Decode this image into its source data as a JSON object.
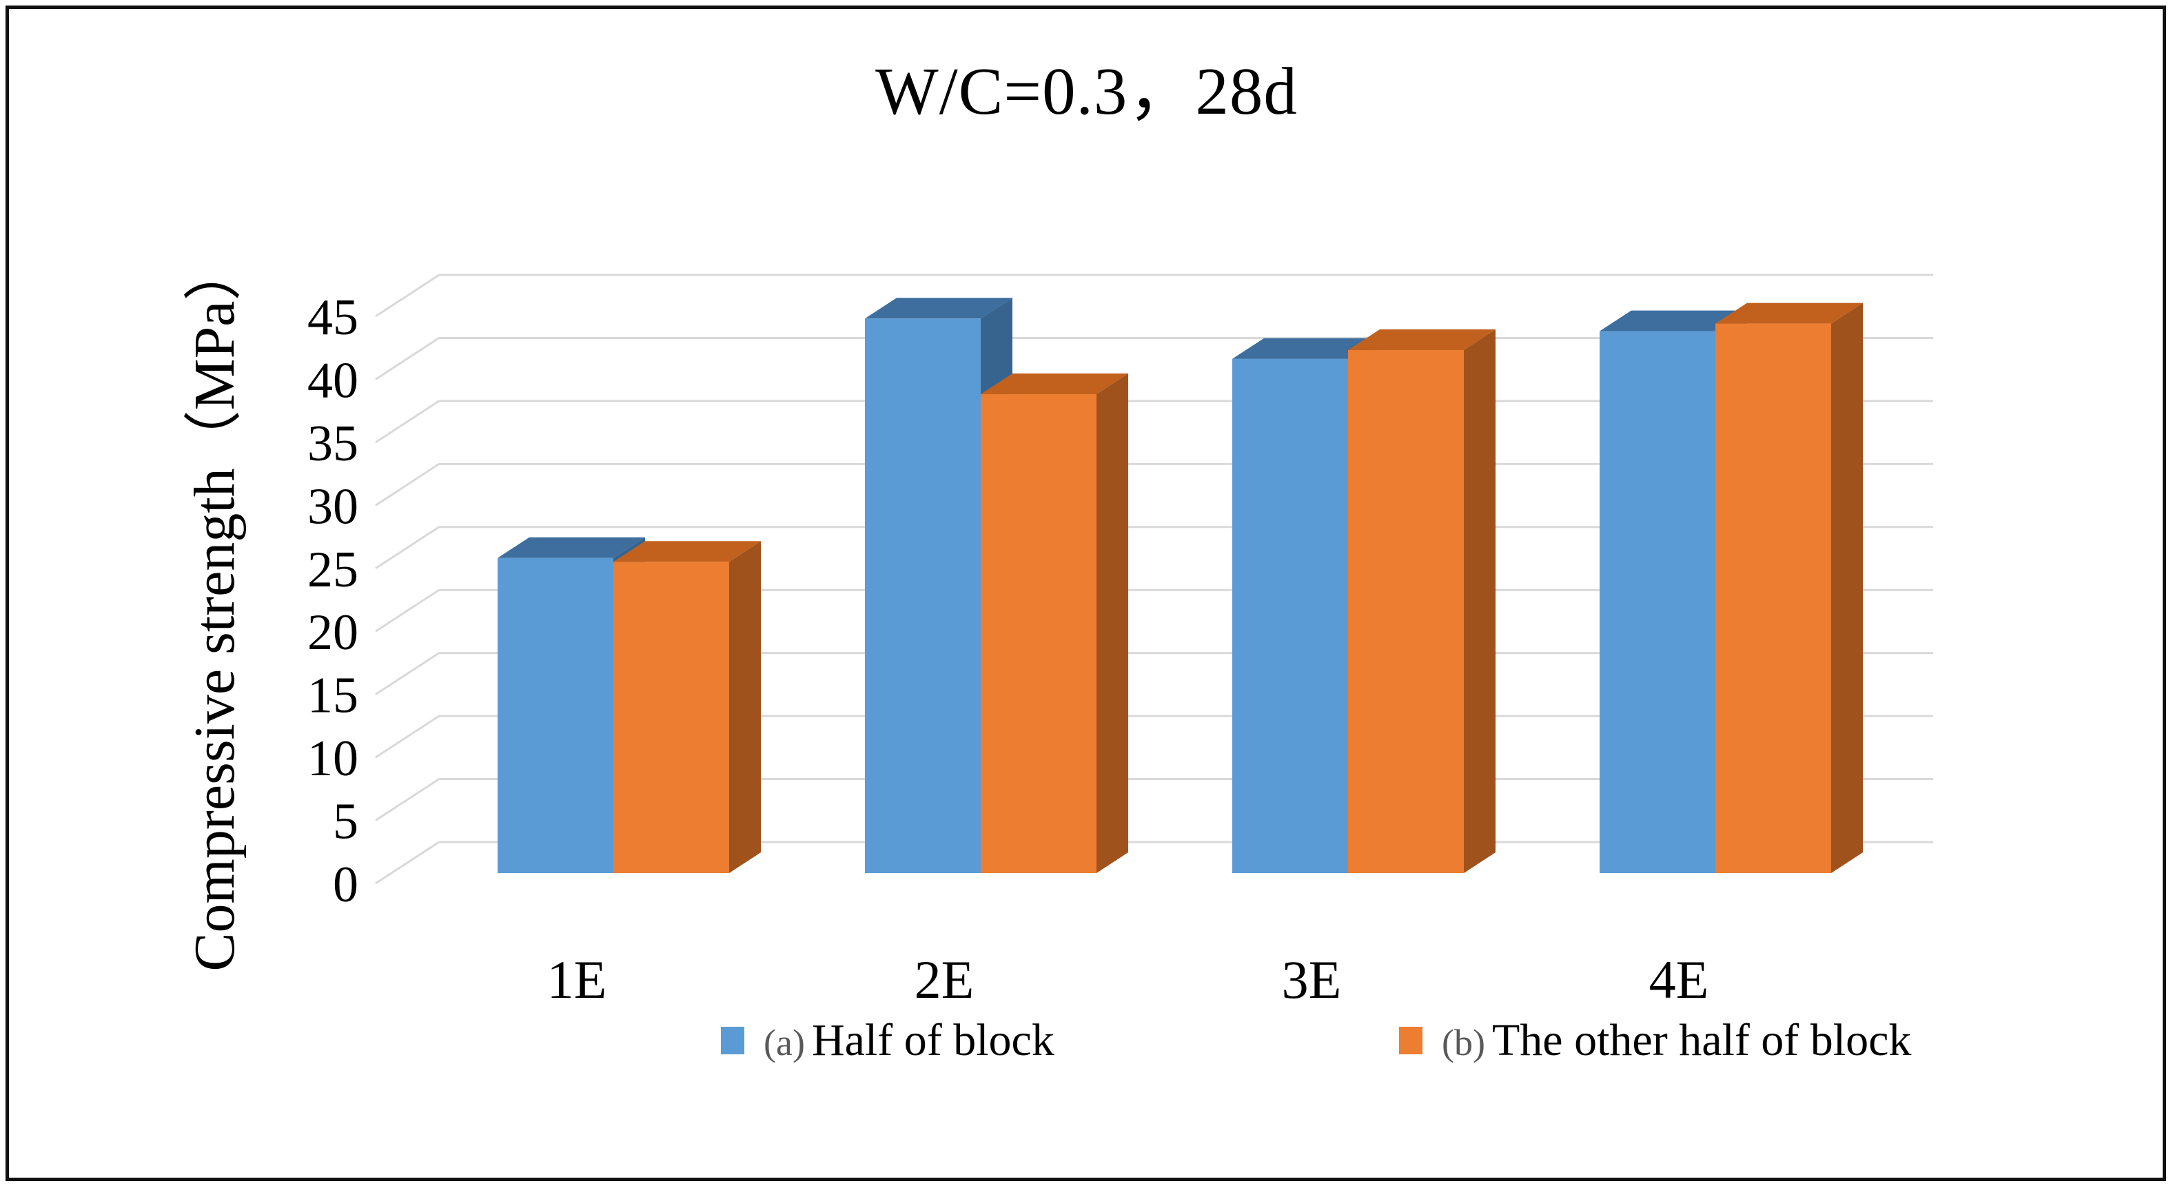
{
  "title": {
    "text": "W/C=0.3，28d"
  },
  "y_axis": {
    "title": "Compressive strength（MPa）"
  },
  "legend": {
    "items": [
      {
        "prefix": "(a)",
        "label": "Half of block",
        "color": "#5B9BD5"
      },
      {
        "prefix": "(b)",
        "label": "The other half of block",
        "color": "#ED7D31"
      }
    ]
  },
  "chart_data": {
    "type": "bar",
    "projection": "3d-clustered-column",
    "title": "W/C=0.3，28d",
    "xlabel": "",
    "ylabel": "Compressive strength（MPa）",
    "categories": [
      "1E",
      "2E",
      "3E",
      "4E"
    ],
    "series": [
      {
        "name": "(a) Half of block",
        "color": "#5B9BD5",
        "color_top": "#3D6E9E",
        "color_side": "#37648F",
        "values": [
          25.0,
          44.0,
          40.8,
          43.0
        ]
      },
      {
        "name": "(b) The other half of block",
        "color": "#ED7D31",
        "color_top": "#C2611E",
        "color_side": "#A0521C",
        "values": [
          24.7,
          38.0,
          41.5,
          43.6
        ]
      }
    ],
    "ylim": [
      0,
      45
    ],
    "ytick_step": 5,
    "yticks": [
      0,
      5,
      10,
      15,
      20,
      25,
      30,
      35,
      40,
      45
    ],
    "grid": true,
    "gridline_color": "#D9D9D9",
    "legend_position": "bottom"
  }
}
